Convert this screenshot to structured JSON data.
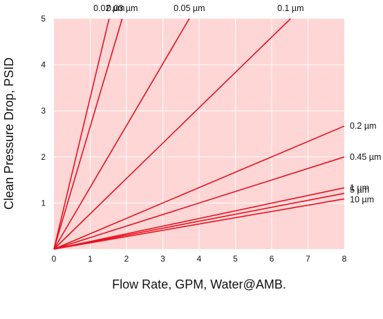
{
  "colors": {
    "plot_background": "#ffd6d6",
    "gridline": "#ffffff",
    "line": "#e8101e",
    "text": "#111111"
  },
  "chart_data": {
    "type": "line",
    "title": "",
    "xlabel": "Flow Rate, GPM, Water@AMB.",
    "ylabel": "Clean Pressure Drop, PSID",
    "xlim": [
      0,
      8
    ],
    "ylim": [
      0,
      5
    ],
    "x_ticks": [
      "0",
      "1",
      "2",
      "3",
      "4",
      "5",
      "6",
      "7",
      "8"
    ],
    "y_ticks": [
      "1",
      "2",
      "3",
      "4",
      "5"
    ],
    "grid": true,
    "legend": "none",
    "series": [
      {
        "name": "0.02 µm",
        "x": [
          0,
          1.52
        ],
        "y": [
          0,
          5
        ]
      },
      {
        "name": "0.03 µm",
        "x": [
          0,
          1.88
        ],
        "y": [
          0,
          5
        ]
      },
      {
        "name": "0.05 µm",
        "x": [
          0,
          3.73
        ],
        "y": [
          0,
          5
        ]
      },
      {
        "name": "0.1 µm",
        "x": [
          0,
          6.52
        ],
        "y": [
          0,
          5
        ]
      },
      {
        "name": "0.2 µm",
        "x": [
          0,
          8
        ],
        "y": [
          0,
          2.67
        ]
      },
      {
        "name": "0.45 µm",
        "x": [
          0,
          8
        ],
        "y": [
          0,
          2.0
        ]
      },
      {
        "name": "1 µm",
        "x": [
          0,
          8
        ],
        "y": [
          0,
          1.33
        ]
      },
      {
        "name": "5 µm",
        "x": [
          0,
          8
        ],
        "y": [
          0,
          1.21
        ]
      },
      {
        "name": "10 µm",
        "x": [
          0,
          8
        ],
        "y": [
          0,
          1.09
        ]
      }
    ]
  }
}
